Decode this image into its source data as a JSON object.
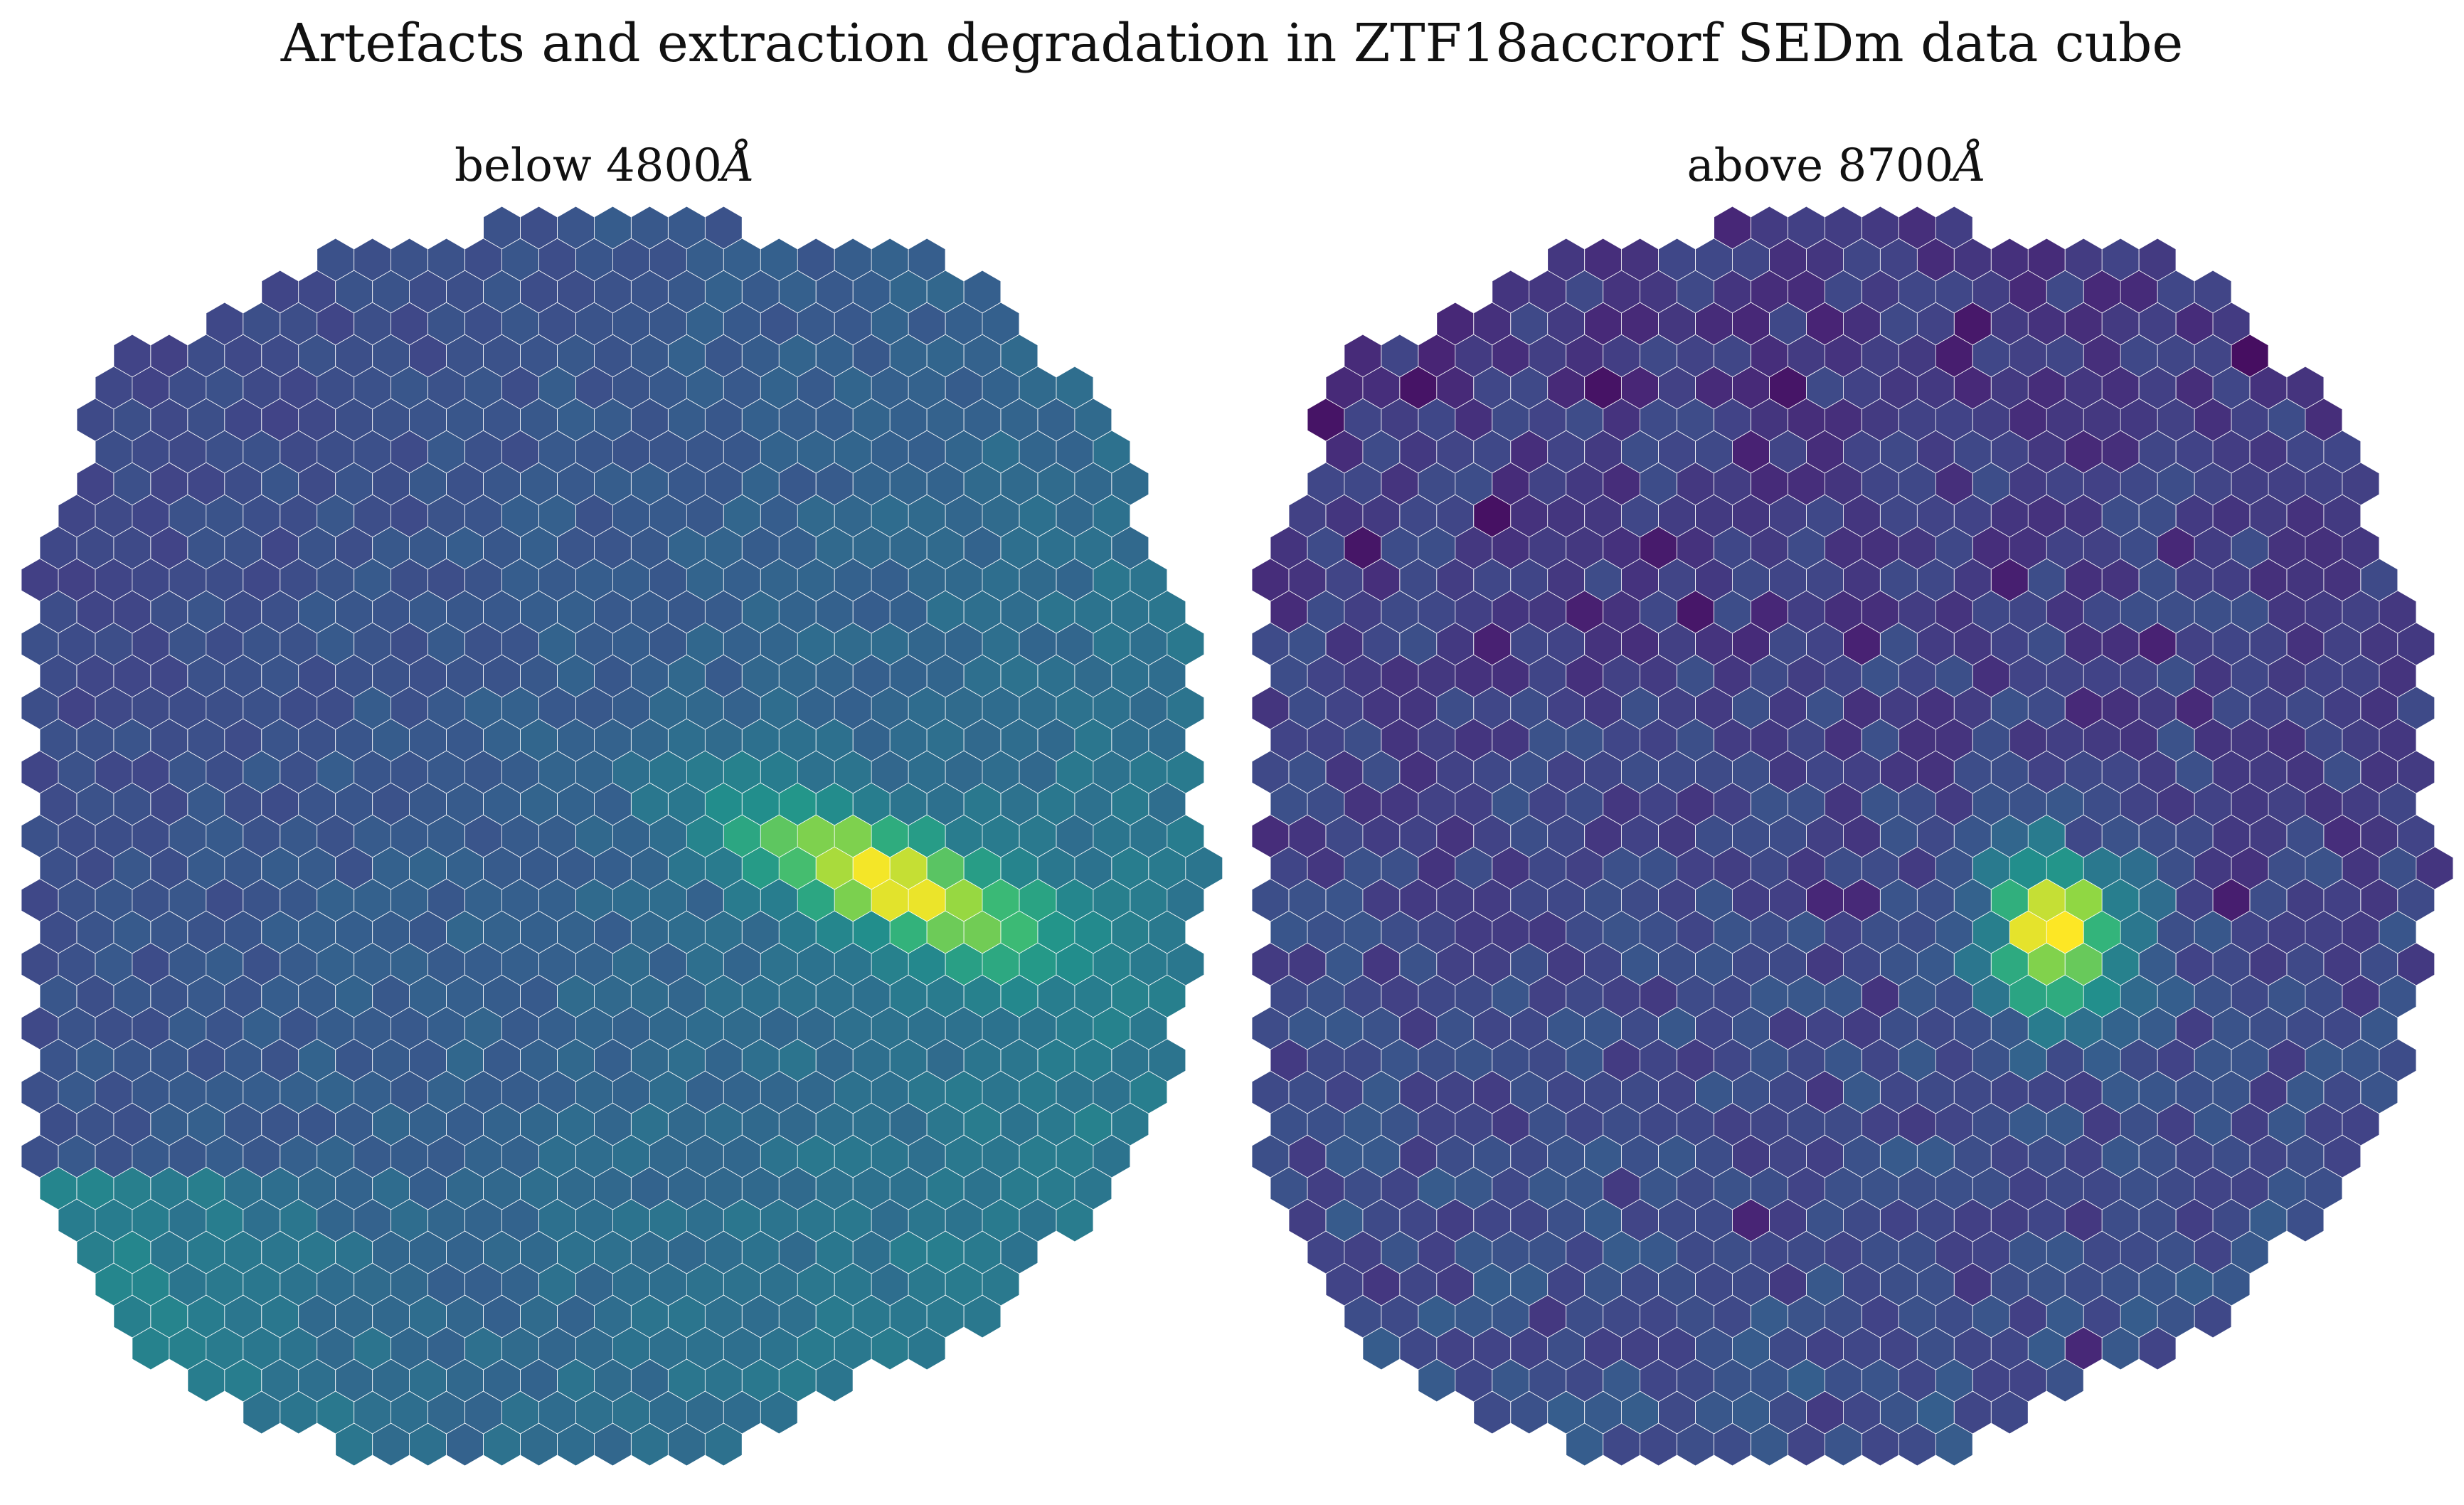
{
  "chart_data": [
    {
      "type": "heatmap",
      "title": "Artefacts and extraction degradation in ZTF18accrorf SEDm data cube",
      "panels": [
        {
          "subtitle": "below 4800",
          "subtitle_unit": "Å",
          "colormap": "viridis",
          "grid": "hexagonal spaxels",
          "features": {
            "source_center": [
              0.72,
              0.52
            ],
            "source_shape": "elongated",
            "background_gradient": "dark top-left to bright bottom-left"
          }
        },
        {
          "subtitle": "above 8700",
          "subtitle_unit": "Å",
          "colormap": "viridis",
          "grid": "hexagonal spaxels",
          "features": {
            "source_center": [
              0.67,
              0.56
            ],
            "source_shape": "compact",
            "background_gradient": "mostly uniform dark purple"
          }
        }
      ]
    }
  ]
}
